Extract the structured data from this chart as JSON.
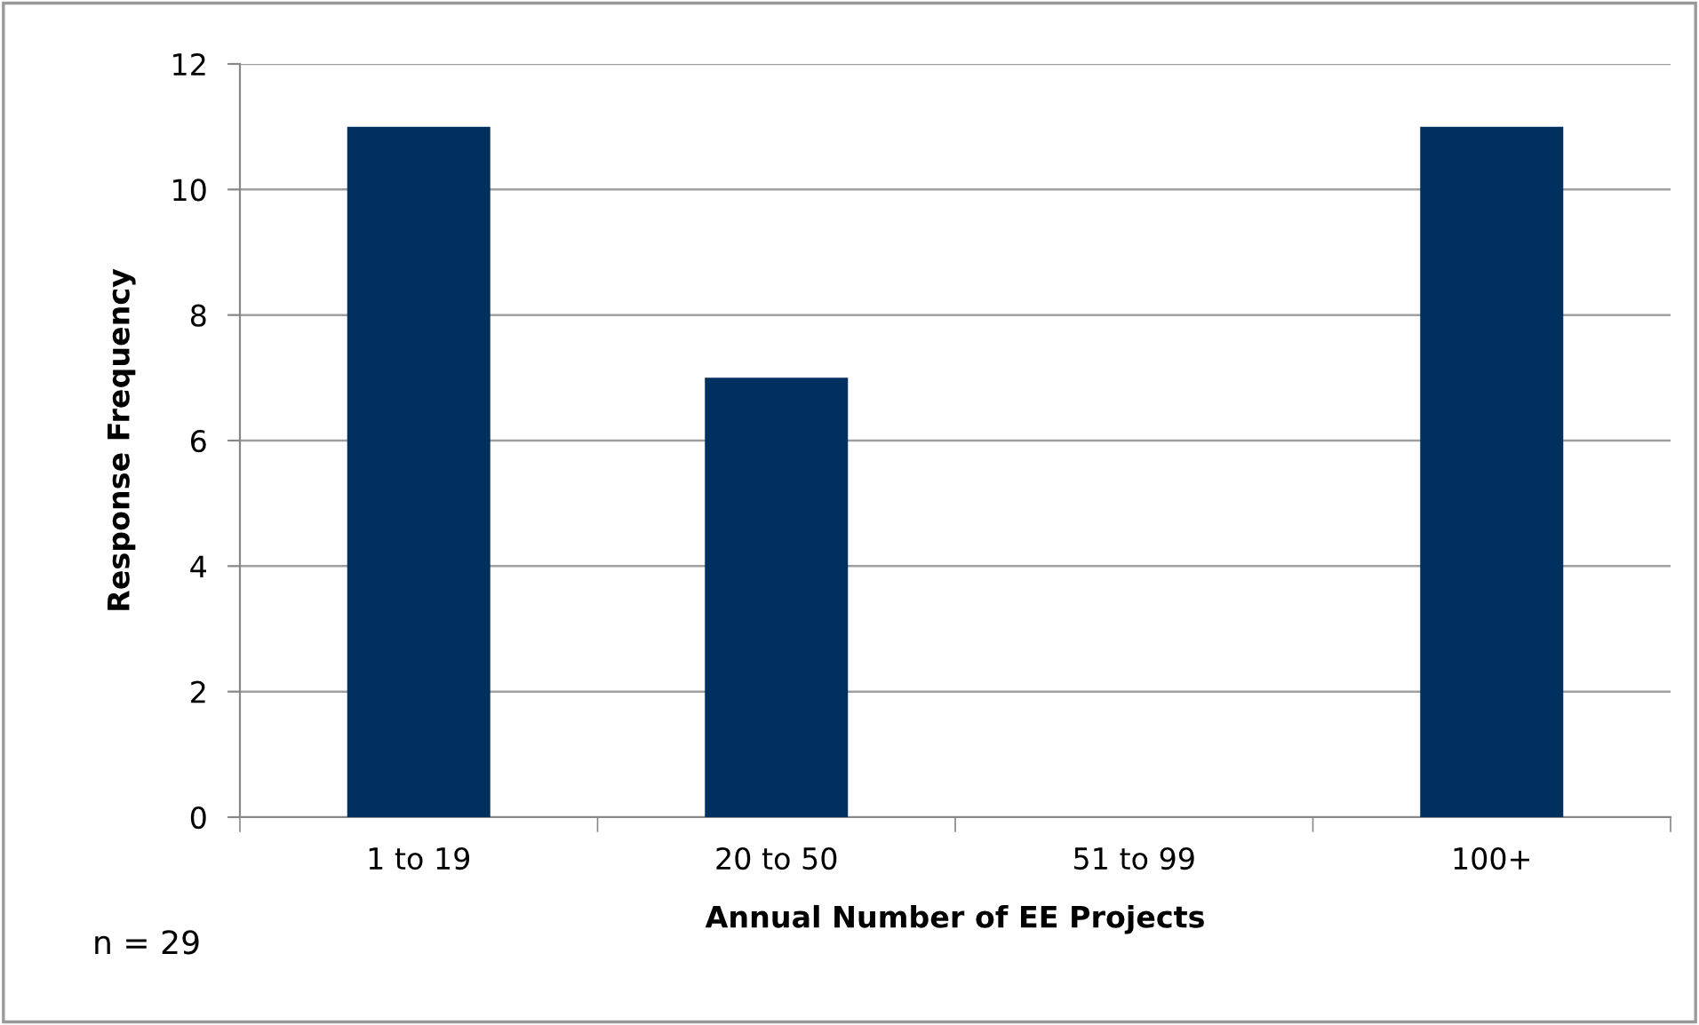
{
  "chart_data": {
    "type": "bar",
    "categories": [
      "1 to 19",
      "20 to 50",
      "51 to 99",
      "100+"
    ],
    "values": [
      11,
      7,
      0,
      11
    ],
    "color": "#003060",
    "xlabel": "Annual Number of EE Projects",
    "ylabel": "Response Frequency",
    "ylim": [
      0,
      12
    ],
    "yticks": [
      0,
      2,
      4,
      6,
      8,
      10,
      12
    ],
    "grid": "y",
    "annotations": [
      "n = 29"
    ]
  }
}
